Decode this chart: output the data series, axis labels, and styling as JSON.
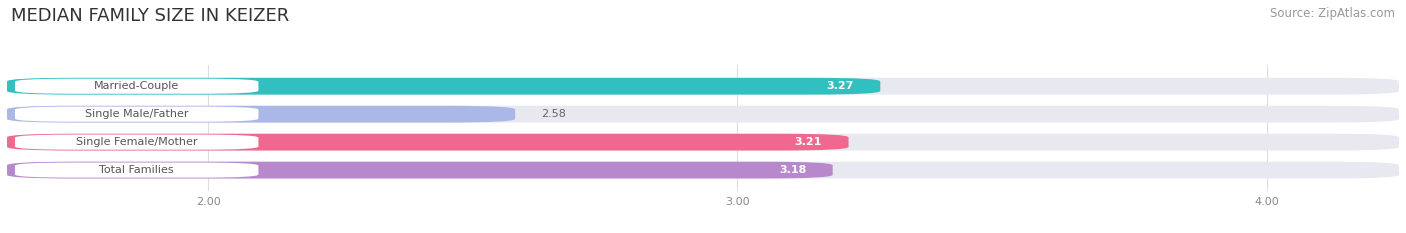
{
  "title": "MEDIAN FAMILY SIZE IN KEIZER",
  "source": "Source: ZipAtlas.com",
  "categories": [
    "Married-Couple",
    "Single Male/Father",
    "Single Female/Mother",
    "Total Families"
  ],
  "values": [
    3.27,
    2.58,
    3.21,
    3.18
  ],
  "bar_colors": [
    "#32bfc0",
    "#aab8e8",
    "#f06890",
    "#b888cc"
  ],
  "bar_bg_color": "#e8e8f0",
  "value_labels": [
    "3.27",
    "2.58",
    "3.21",
    "3.18"
  ],
  "xmin": 1.62,
  "xlim_min": 1.62,
  "xlim_max": 4.25,
  "x_ticks": [
    2.0,
    3.0,
    4.0
  ],
  "x_tick_labels": [
    "2.00",
    "3.00",
    "4.00"
  ],
  "bar_height": 0.6,
  "background_color": "#ffffff",
  "title_fontsize": 13,
  "label_fontsize": 8.0,
  "value_fontsize": 8.0,
  "source_fontsize": 8.5,
  "label_pill_color": "#ffffff",
  "label_text_color": "#555555",
  "grid_color": "#dddddd"
}
